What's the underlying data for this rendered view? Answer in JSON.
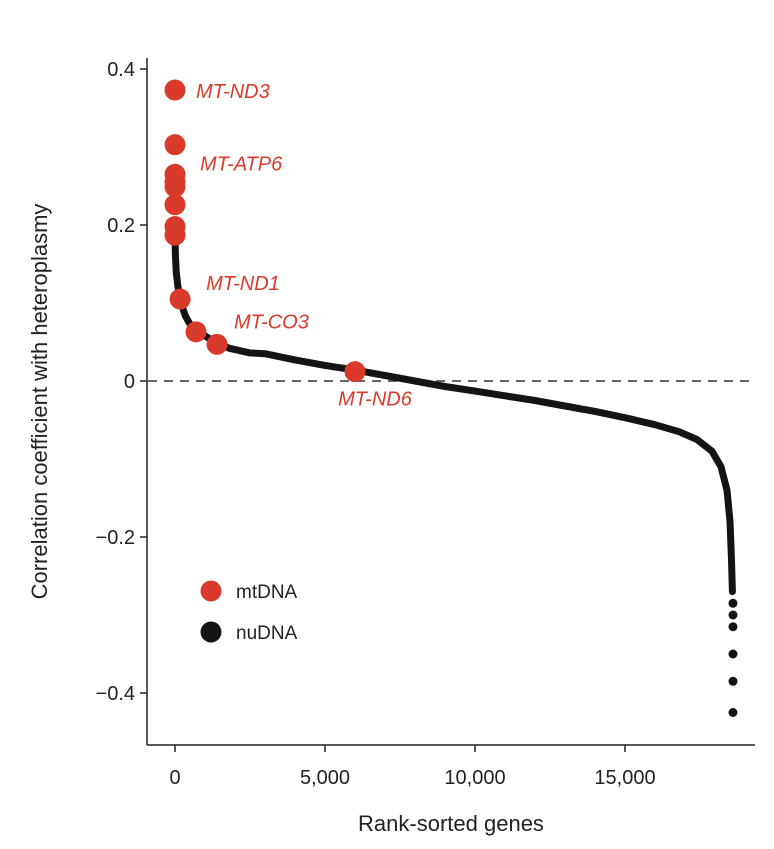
{
  "chart_data": {
    "type": "scatter",
    "xlabel": "Rank-sorted genes",
    "ylabel": "Correlation coefficient with heteroplasmy",
    "xlim": [
      -900,
      19000
    ],
    "ylim": [
      -0.46,
      0.42
    ],
    "x_ticks": [
      0,
      5000,
      10000,
      15000
    ],
    "x_tick_labels": [
      "0",
      "5,000",
      "10,000",
      "15,000"
    ],
    "y_ticks": [
      0.4,
      0.2,
      0,
      -0.2,
      -0.4
    ],
    "y_tick_labels": [
      "0.4",
      "0.2",
      "0",
      "−0.2",
      "−0.4"
    ],
    "reference_line": {
      "y": 0,
      "style": "dashed"
    },
    "colors": {
      "mtDNA": "#d93a2b",
      "nuDNA": "#141414",
      "reference_line": "#666666",
      "axis": "#222222"
    },
    "legend": {
      "placement": "lower-left",
      "entries": [
        {
          "name": "mtDNA",
          "color": "#d93a2b"
        },
        {
          "name": "nuDNA",
          "color": "#141414"
        }
      ]
    },
    "series": [
      {
        "name": "mtDNA",
        "points": [
          {
            "x": 0,
            "y": 0.373,
            "label": "MT-ND3"
          },
          {
            "x": 0,
            "y": 0.303,
            "label": "MT-ATP6"
          },
          {
            "x": 0,
            "y": 0.265
          },
          {
            "x": 0,
            "y": 0.255
          },
          {
            "x": 0,
            "y": 0.249
          },
          {
            "x": 0,
            "y": 0.226
          },
          {
            "x": 0,
            "y": 0.198
          },
          {
            "x": 0,
            "y": 0.187
          },
          {
            "x": 170,
            "y": 0.105,
            "label": "MT-ND1"
          },
          {
            "x": 700,
            "y": 0.063
          },
          {
            "x": 1400,
            "y": 0.047,
            "label": "MT-CO3"
          },
          {
            "x": 6000,
            "y": 0.012,
            "label": "MT-ND6"
          }
        ]
      },
      {
        "name": "nuDNA",
        "curve": [
          [
            0,
            0.19
          ],
          [
            10,
            0.165
          ],
          [
            40,
            0.14
          ],
          [
            100,
            0.12
          ],
          [
            200,
            0.1
          ],
          [
            350,
            0.083
          ],
          [
            500,
            0.073
          ],
          [
            800,
            0.063
          ],
          [
            1200,
            0.053
          ],
          [
            1800,
            0.042
          ],
          [
            2500,
            0.036
          ],
          [
            3000,
            0.035
          ],
          [
            4000,
            0.027
          ],
          [
            5000,
            0.02
          ],
          [
            6000,
            0.014
          ],
          [
            7000,
            0.007
          ],
          [
            8000,
            0.0
          ],
          [
            9000,
            -0.007
          ],
          [
            10000,
            -0.013
          ],
          [
            11000,
            -0.019
          ],
          [
            12000,
            -0.025
          ],
          [
            13000,
            -0.032
          ],
          [
            14000,
            -0.039
          ],
          [
            15000,
            -0.047
          ],
          [
            16000,
            -0.056
          ],
          [
            16800,
            -0.065
          ],
          [
            17400,
            -0.075
          ],
          [
            17900,
            -0.09
          ],
          [
            18200,
            -0.11
          ],
          [
            18400,
            -0.14
          ],
          [
            18500,
            -0.18
          ],
          [
            18550,
            -0.23
          ],
          [
            18580,
            -0.27
          ]
        ],
        "tail_points": [
          [
            18600,
            -0.285
          ],
          [
            18600,
            -0.3
          ],
          [
            18600,
            -0.315
          ],
          [
            18600,
            -0.35
          ],
          [
            18600,
            -0.385
          ],
          [
            18600,
            -0.425
          ]
        ]
      }
    ]
  }
}
